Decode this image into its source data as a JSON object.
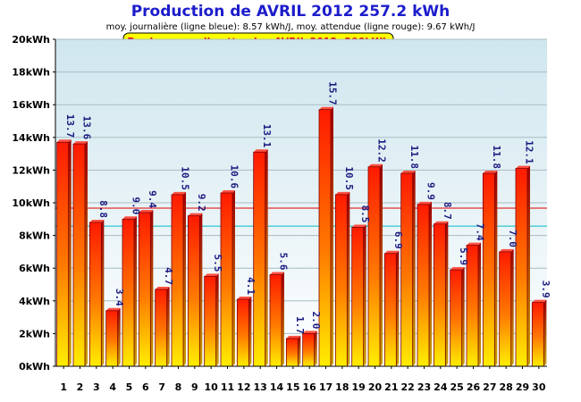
{
  "chart_data": {
    "type": "bar",
    "title": "Production de AVRIL 2012  257.2 kWh",
    "subtitle": "moy. journalière (ligne bleue): 8.57 kWh/J,  moy. attendue (ligne rouge): 9.67 kWh/J",
    "badge": "Prod. mensuelle attendue AVRIL 2012: 290kWh",
    "xlabel": "",
    "ylabel": "",
    "ylim": [
      0,
      20
    ],
    "yticks": [
      "0kWh",
      "2kWh",
      "4kWh",
      "6kWh",
      "8kWh",
      "10kWh",
      "12kWh",
      "14kWh",
      "16kWh",
      "18kWh",
      "20kWh"
    ],
    "categories": [
      "1",
      "2",
      "3",
      "4",
      "5",
      "6",
      "7",
      "8",
      "9",
      "10",
      "11",
      "12",
      "13",
      "14",
      "15",
      "16",
      "17",
      "18",
      "19",
      "20",
      "21",
      "22",
      "23",
      "24",
      "25",
      "26",
      "27",
      "28",
      "29",
      "30"
    ],
    "values": [
      13.7,
      13.6,
      8.8,
      3.4,
      9.0,
      9.4,
      4.7,
      10.5,
      9.2,
      5.5,
      10.6,
      4.1,
      13.1,
      5.6,
      1.7,
      2.0,
      15.7,
      10.5,
      8.5,
      12.2,
      6.9,
      11.8,
      9.9,
      8.7,
      5.9,
      7.4,
      11.8,
      7.0,
      12.1,
      3.9
    ],
    "value_labels": [
      "13.7",
      "13.6",
      "8.8",
      "3.4",
      "9.0",
      "9.4",
      "4.7",
      "10.5",
      "9.2",
      "5.5",
      "10.6",
      "4.1",
      "13.1",
      "5.6",
      "1.7",
      "2.0",
      "15.7",
      "10.5",
      "8.5",
      "12.2",
      "6.9",
      "11.8",
      "9.9",
      "8.7",
      "5.9",
      "7.4",
      "11.8",
      "7.0",
      "12.1",
      "3.9"
    ],
    "reference_lines": [
      {
        "value": 8.57,
        "color": "#00b8c8"
      },
      {
        "value": 9.67,
        "color": "#e00000"
      }
    ],
    "grid": true,
    "colors": {
      "bar_top": "#ff1a00",
      "bar_bottom": "#ffee00",
      "plot_bg_top": "#cfe6ee",
      "plot_bg_bottom": "#ffffff",
      "title": "#1c1ccc",
      "value_label": "#1a1a80",
      "badge_bg": "#ffff00"
    }
  }
}
